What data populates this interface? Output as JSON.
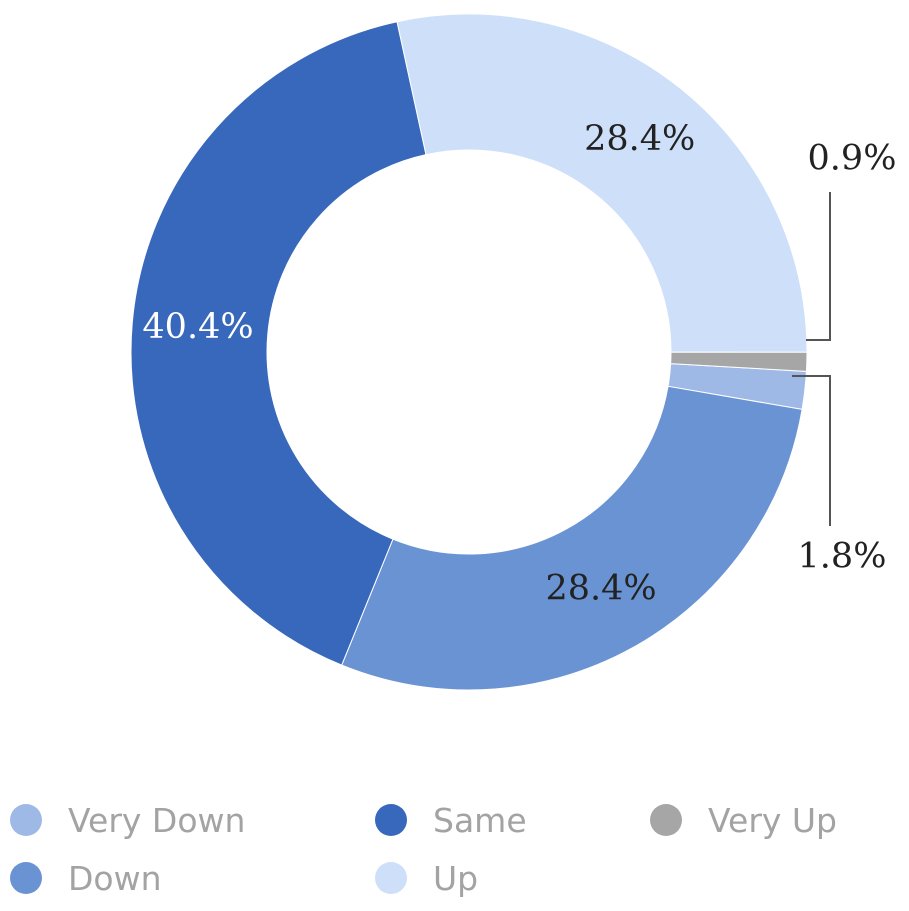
{
  "chart_data": {
    "type": "pie",
    "subtype": "donut",
    "title": "",
    "categories": [
      "Very Down",
      "Down",
      "Same",
      "Up",
      "Very Up"
    ],
    "values": [
      1.8,
      28.4,
      40.4,
      28.4,
      0.9
    ],
    "labels": [
      "1.8%",
      "28.4%",
      "40.4%",
      "28.4%",
      "0.9%"
    ],
    "colors": [
      "#9fb9e6",
      "#6a93d3",
      "#3868bb",
      "#cddff9",
      "#a6a6a6"
    ],
    "label_colors": [
      "#222222",
      "#222222",
      "#ffffff",
      "#222222",
      "#222222"
    ],
    "legend_position": "bottom"
  },
  "legend": {
    "items": [
      {
        "label": "Very Down",
        "color": "#9fb9e6"
      },
      {
        "label": "Same",
        "color": "#3868bb"
      },
      {
        "label": "Very Up",
        "color": "#a6a6a6"
      },
      {
        "label": "Down",
        "color": "#6a93d3"
      },
      {
        "label": "Up",
        "color": "#cddff9"
      }
    ]
  }
}
